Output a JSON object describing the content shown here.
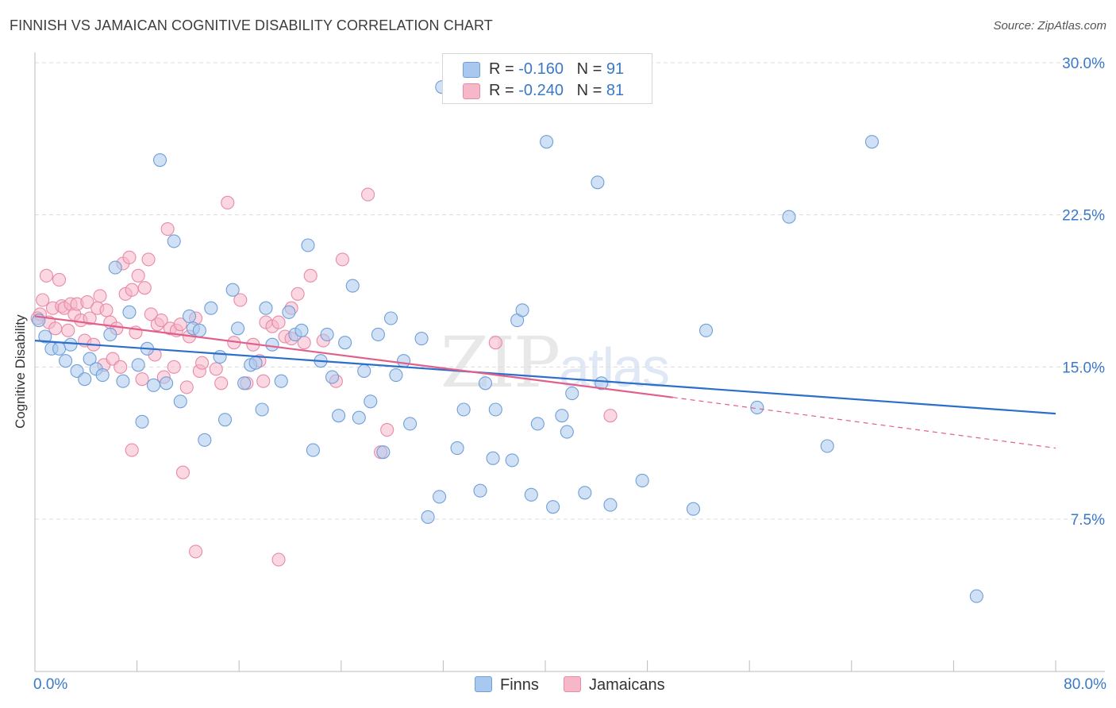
{
  "header": {
    "title": "FINNISH VS JAMAICAN COGNITIVE DISABILITY CORRELATION CHART",
    "source": "Source: ZipAtlas.com"
  },
  "watermark": {
    "zip": "ZIP",
    "atlas": "atlas"
  },
  "legend_top": {
    "rows": [
      {
        "r_label": "R = ",
        "r_value": "-0.160",
        "n_label": "N = ",
        "n_value": "91"
      },
      {
        "r_label": "R = ",
        "r_value": "-0.240",
        "n_label": "N = ",
        "n_value": "81"
      }
    ]
  },
  "legend_bottom": {
    "items": [
      "Finns",
      "Jamaicans"
    ]
  },
  "colors": {
    "finns_fill": "#a9c8ef",
    "finns_stroke": "#6f9fd8",
    "finns_line": "#2c6ecb",
    "jam_fill": "#f6b7c9",
    "jam_stroke": "#e88aa8",
    "jam_line": "#e0608b",
    "grid": "#dcdcdc",
    "tick_label": "#3a78c8"
  },
  "chart_data": {
    "type": "scatter",
    "title": "FINNISH VS JAMAICAN COGNITIVE DISABILITY CORRELATION CHART",
    "xlabel": "",
    "ylabel": "Cognitive Disability",
    "xlim": [
      0,
      80
    ],
    "ylim": [
      0,
      31
    ],
    "x_tick_labels": [
      "0.0%",
      "80.0%"
    ],
    "y_ticks": [
      7.5,
      15.0,
      22.5,
      30.0
    ],
    "y_tick_labels": [
      "7.5%",
      "15.0%",
      "22.5%",
      "30.0%"
    ],
    "grid": true,
    "legend_position": "top-center",
    "series": [
      {
        "name": "Finns",
        "r": -0.16,
        "n": 91,
        "trend": {
          "x": [
            0,
            80
          ],
          "y": [
            16.3,
            12.7
          ]
        },
        "points": [
          [
            0.3,
            17.3
          ],
          [
            0.8,
            16.5
          ],
          [
            1.3,
            15.9
          ],
          [
            1.9,
            15.9
          ],
          [
            2.4,
            15.3
          ],
          [
            2.8,
            16.1
          ],
          [
            3.3,
            14.8
          ],
          [
            3.9,
            14.4
          ],
          [
            4.3,
            15.4
          ],
          [
            4.8,
            14.9
          ],
          [
            5.3,
            14.6
          ],
          [
            5.9,
            16.6
          ],
          [
            6.3,
            19.9
          ],
          [
            6.9,
            14.3
          ],
          [
            7.4,
            17.7
          ],
          [
            8.1,
            15.1
          ],
          [
            8.4,
            12.3
          ],
          [
            8.8,
            15.9
          ],
          [
            9.3,
            14.1
          ],
          [
            9.8,
            25.2
          ],
          [
            10.3,
            14.2
          ],
          [
            10.9,
            21.2
          ],
          [
            11.4,
            13.3
          ],
          [
            12.1,
            17.5
          ],
          [
            12.4,
            16.9
          ],
          [
            12.9,
            16.8
          ],
          [
            13.3,
            11.4
          ],
          [
            13.8,
            17.9
          ],
          [
            14.5,
            15.5
          ],
          [
            14.9,
            12.4
          ],
          [
            15.5,
            18.8
          ],
          [
            15.9,
            16.9
          ],
          [
            16.4,
            14.2
          ],
          [
            16.9,
            15.1
          ],
          [
            17.3,
            15.2
          ],
          [
            17.8,
            12.9
          ],
          [
            18.1,
            17.9
          ],
          [
            18.6,
            16.1
          ],
          [
            19.3,
            14.3
          ],
          [
            19.9,
            17.7
          ],
          [
            20.4,
            16.6
          ],
          [
            20.9,
            16.8
          ],
          [
            21.4,
            21.0
          ],
          [
            21.8,
            10.9
          ],
          [
            22.4,
            15.3
          ],
          [
            22.9,
            16.6
          ],
          [
            23.3,
            14.5
          ],
          [
            23.8,
            12.6
          ],
          [
            24.3,
            16.2
          ],
          [
            24.9,
            19.0
          ],
          [
            25.4,
            12.5
          ],
          [
            25.8,
            14.8
          ],
          [
            26.3,
            13.3
          ],
          [
            26.9,
            16.6
          ],
          [
            27.3,
            10.8
          ],
          [
            27.9,
            17.4
          ],
          [
            28.3,
            14.6
          ],
          [
            28.9,
            15.3
          ],
          [
            29.4,
            12.2
          ],
          [
            30.3,
            16.4
          ],
          [
            30.8,
            7.6
          ],
          [
            31.7,
            8.6
          ],
          [
            31.9,
            28.8
          ],
          [
            33.1,
            11.0
          ],
          [
            33.6,
            12.9
          ],
          [
            34.9,
            8.9
          ],
          [
            35.3,
            14.2
          ],
          [
            35.9,
            10.5
          ],
          [
            36.1,
            12.9
          ],
          [
            37.4,
            10.4
          ],
          [
            37.8,
            17.3
          ],
          [
            38.2,
            17.8
          ],
          [
            38.9,
            8.7
          ],
          [
            39.4,
            12.2
          ],
          [
            40.1,
            26.1
          ],
          [
            40.6,
            8.1
          ],
          [
            41.7,
            11.8
          ],
          [
            42.1,
            13.7
          ],
          [
            43.1,
            8.8
          ],
          [
            44.1,
            24.1
          ],
          [
            44.4,
            14.2
          ],
          [
            45.1,
            8.2
          ],
          [
            47.6,
            9.4
          ],
          [
            51.6,
            8.0
          ],
          [
            52.6,
            16.8
          ],
          [
            56.6,
            13.0
          ],
          [
            59.1,
            22.4
          ],
          [
            62.1,
            11.1
          ],
          [
            65.6,
            26.1
          ],
          [
            73.8,
            3.7
          ],
          [
            41.3,
            12.6
          ]
        ]
      },
      {
        "name": "Jamaicans",
        "r": -0.24,
        "n": 81,
        "trend": {
          "x": [
            0,
            50
          ],
          "y": [
            17.5,
            13.5
          ],
          "dashed_x": [
            50,
            80
          ],
          "dashed_y": [
            13.5,
            11.0
          ]
        },
        "points": [
          [
            0.4,
            17.6
          ],
          [
            0.6,
            18.3
          ],
          [
            0.9,
            19.5
          ],
          [
            1.1,
            17.2
          ],
          [
            1.4,
            17.9
          ],
          [
            1.6,
            16.9
          ],
          [
            1.9,
            19.3
          ],
          [
            2.1,
            18.0
          ],
          [
            2.3,
            17.9
          ],
          [
            2.6,
            16.8
          ],
          [
            2.8,
            18.1
          ],
          [
            3.1,
            17.6
          ],
          [
            3.3,
            18.1
          ],
          [
            3.6,
            17.3
          ],
          [
            3.9,
            16.3
          ],
          [
            4.1,
            18.2
          ],
          [
            4.3,
            17.4
          ],
          [
            4.6,
            16.1
          ],
          [
            4.9,
            17.9
          ],
          [
            5.1,
            18.5
          ],
          [
            5.4,
            15.1
          ],
          [
            5.6,
            17.8
          ],
          [
            5.9,
            17.2
          ],
          [
            6.1,
            15.4
          ],
          [
            6.4,
            16.9
          ],
          [
            6.7,
            15.0
          ],
          [
            6.9,
            20.1
          ],
          [
            7.1,
            18.6
          ],
          [
            7.4,
            20.4
          ],
          [
            7.6,
            18.8
          ],
          [
            7.9,
            16.7
          ],
          [
            8.1,
            19.5
          ],
          [
            8.4,
            14.4
          ],
          [
            8.6,
            18.9
          ],
          [
            8.9,
            20.3
          ],
          [
            9.1,
            17.6
          ],
          [
            9.4,
            15.6
          ],
          [
            9.6,
            17.1
          ],
          [
            9.9,
            17.3
          ],
          [
            10.1,
            14.5
          ],
          [
            10.4,
            21.8
          ],
          [
            10.6,
            16.9
          ],
          [
            10.9,
            15.0
          ],
          [
            11.1,
            16.8
          ],
          [
            11.4,
            17.1
          ],
          [
            11.9,
            14.0
          ],
          [
            12.1,
            16.5
          ],
          [
            12.6,
            17.4
          ],
          [
            12.9,
            14.8
          ],
          [
            13.1,
            15.2
          ],
          [
            14.2,
            14.9
          ],
          [
            14.6,
            14.2
          ],
          [
            15.1,
            23.1
          ],
          [
            15.6,
            16.2
          ],
          [
            16.1,
            18.3
          ],
          [
            16.6,
            14.2
          ],
          [
            17.6,
            15.3
          ],
          [
            17.9,
            14.3
          ],
          [
            18.1,
            17.2
          ],
          [
            18.6,
            17.0
          ],
          [
            19.1,
            17.2
          ],
          [
            19.6,
            16.5
          ],
          [
            20.1,
            17.9
          ],
          [
            20.6,
            18.6
          ],
          [
            21.1,
            16.2
          ],
          [
            21.6,
            19.5
          ],
          [
            22.6,
            16.3
          ],
          [
            23.6,
            14.3
          ],
          [
            24.1,
            20.3
          ],
          [
            26.1,
            23.5
          ],
          [
            27.6,
            11.9
          ],
          [
            27.1,
            10.8
          ],
          [
            36.1,
            16.2
          ],
          [
            45.1,
            12.6
          ],
          [
            7.6,
            10.9
          ],
          [
            11.6,
            9.8
          ],
          [
            12.6,
            5.9
          ],
          [
            19.1,
            5.5
          ],
          [
            20.1,
            16.4
          ],
          [
            17.1,
            16.1
          ],
          [
            0.2,
            17.4
          ]
        ]
      }
    ]
  }
}
